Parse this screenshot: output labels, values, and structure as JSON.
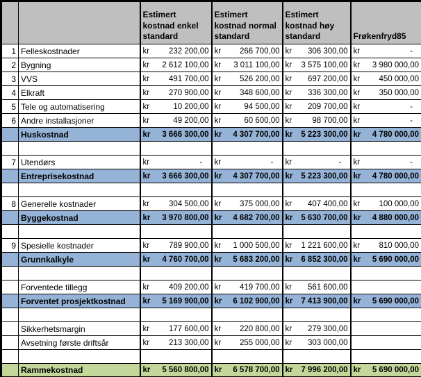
{
  "colors": {
    "header_bg": "#bfbfbf",
    "subtotal_bg": "#95b3d7",
    "grand_bg": "#c4d79b",
    "grid": "#000000",
    "sheet_bg": "#ffffff"
  },
  "table": {
    "currency_prefix": "kr",
    "header": {
      "row_num": "",
      "item": "",
      "enkel": "Estimert kostnad enkel standard",
      "normal": "Estimert kostnad normal standard",
      "hoy": "Estimert kostnad høy standard",
      "frokenfryd": "Frøkenfryd85"
    },
    "rows": [
      {
        "n": "1",
        "label": "Felleskostnader",
        "style": "normal",
        "v": [
          "232 200,00",
          "266 700,00",
          "306 300,00",
          "-"
        ]
      },
      {
        "n": "2",
        "label": "Bygning",
        "style": "normal",
        "v": [
          "2 612 100,00",
          "3 011 100,00",
          "3 575 100,00",
          "3 980 000,00"
        ]
      },
      {
        "n": "3",
        "label": "VVS",
        "style": "normal",
        "v": [
          "491 700,00",
          "526 200,00",
          "697 200,00",
          "450 000,00"
        ]
      },
      {
        "n": "4",
        "label": "Elkraft",
        "style": "normal",
        "v": [
          "270 900,00",
          "348 600,00",
          "336 300,00",
          "350 000,00"
        ]
      },
      {
        "n": "5",
        "label": "Tele og automatisering",
        "style": "normal",
        "v": [
          "10 200,00",
          "94 500,00",
          "209 700,00",
          "-"
        ]
      },
      {
        "n": "6",
        "label": "Andre installasjoner",
        "style": "normal",
        "v": [
          "49 200,00",
          "60 600,00",
          "98 700,00",
          "-"
        ]
      },
      {
        "n": "",
        "label": "Huskostnad",
        "style": "subtotal",
        "v": [
          "3 666 300,00",
          "4 307 700,00",
          "5 223 300,00",
          "4 780 000,00"
        ]
      },
      {
        "n": "",
        "label": "",
        "style": "blank",
        "v": [
          "",
          "",
          "",
          ""
        ]
      },
      {
        "n": "7",
        "label": "Utendørs",
        "style": "normal",
        "v": [
          "-",
          "-",
          "-",
          "-"
        ]
      },
      {
        "n": "",
        "label": "Entreprisekostnad",
        "style": "subtotal",
        "v": [
          "3 666 300,00",
          "4 307 700,00",
          "5 223 300,00",
          "4 780 000,00"
        ]
      },
      {
        "n": "",
        "label": "",
        "style": "blank",
        "v": [
          "",
          "",
          "",
          ""
        ]
      },
      {
        "n": "8",
        "label": "Generelle kostnader",
        "style": "normal",
        "v": [
          "304 500,00",
          "375 000,00",
          "407 400,00",
          "100 000,00"
        ]
      },
      {
        "n": "",
        "label": "Byggekostnad",
        "style": "subtotal",
        "v": [
          "3 970 800,00",
          "4 682 700,00",
          "5 630 700,00",
          "4 880 000,00"
        ]
      },
      {
        "n": "",
        "label": "",
        "style": "blank",
        "v": [
          "",
          "",
          "",
          ""
        ]
      },
      {
        "n": "9",
        "label": "Spesielle kostnader",
        "style": "normal",
        "v": [
          "789 900,00",
          "1 000 500,00",
          "1 221 600,00",
          "810 000,00"
        ]
      },
      {
        "n": "",
        "label": "Grunnkalkyle",
        "style": "subtotal",
        "v": [
          "4 760 700,00",
          "5 683 200,00",
          "6 852 300,00",
          "5 690 000,00"
        ]
      },
      {
        "n": "",
        "label": "",
        "style": "blank",
        "v": [
          "",
          "",
          "",
          ""
        ]
      },
      {
        "n": "",
        "label": "Forventede tillegg",
        "style": "normal",
        "v": [
          "409 200,00",
          "419 700,00",
          "561 600,00",
          ""
        ]
      },
      {
        "n": "",
        "label": "Forventet prosjektkostnad",
        "style": "subtotal",
        "v": [
          "5 169 900,00",
          "6 102 900,00",
          "7 413 900,00",
          "5 690 000,00"
        ]
      },
      {
        "n": "",
        "label": "",
        "style": "blank",
        "v": [
          "",
          "",
          "",
          ""
        ]
      },
      {
        "n": "",
        "label": "Sikkerhetsmargin",
        "style": "normal",
        "v": [
          "177 600,00",
          "220 800,00",
          "279 300,00",
          ""
        ]
      },
      {
        "n": "",
        "label": "Avsetning første driftsår",
        "style": "normal",
        "v": [
          "213 300,00",
          "255 000,00",
          "303 000,00",
          ""
        ]
      },
      {
        "n": "",
        "label": "",
        "style": "blank",
        "v": [
          "",
          "",
          "",
          ""
        ]
      },
      {
        "n": "",
        "label": "Rammekostnad",
        "style": "grand",
        "v": [
          "5 560 800,00",
          "6 578 700,00",
          "7 996 200,00",
          "5 690 000,00"
        ]
      }
    ]
  }
}
